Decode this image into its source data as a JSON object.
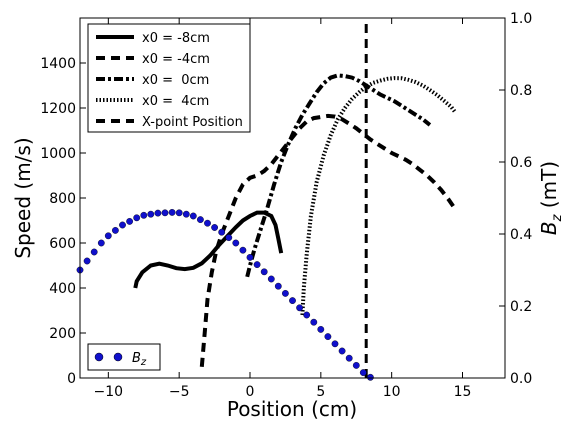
{
  "chart_data": {
    "type": "line",
    "title": "",
    "xlabel": "Position (cm)",
    "ylabel": "Speed (m/s)",
    "y2label_base": "B",
    "y2label_sub": "z",
    "y2label_unit": " (mT)",
    "xlim": [
      -12,
      18
    ],
    "ylim": [
      0,
      1600
    ],
    "y2lim": [
      0,
      1.0
    ],
    "x_ticks": [
      -10,
      -5,
      0,
      5,
      10,
      15
    ],
    "x_tick_labels": [
      "−10",
      "−5",
      "0",
      "5",
      "10",
      "15"
    ],
    "y_ticks": [
      0,
      200,
      400,
      600,
      800,
      1000,
      1200,
      1400
    ],
    "y_tick_labels": [
      "0",
      "200",
      "400",
      "600",
      "800",
      "1000",
      "1200",
      "1400"
    ],
    "y2_ticks": [
      0,
      0.2,
      0.4,
      0.6,
      0.8,
      1.0
    ],
    "y2_tick_labels": [
      "0.0",
      "0.2",
      "0.4",
      "0.6",
      "0.8",
      "1.0"
    ],
    "grid": false,
    "legend_position": "top-left",
    "series": [
      {
        "name": "x0 = -8cm",
        "style": "solid",
        "color": "#000000",
        "points": [
          [
            -8.1,
            400
          ],
          [
            -8.0,
            430
          ],
          [
            -7.6,
            470
          ],
          [
            -7.0,
            500
          ],
          [
            -6.4,
            508
          ],
          [
            -5.8,
            500
          ],
          [
            -5.2,
            488
          ],
          [
            -4.6,
            484
          ],
          [
            -4.0,
            490
          ],
          [
            -3.4,
            510
          ],
          [
            -2.8,
            545
          ],
          [
            -2.2,
            590
          ],
          [
            -1.6,
            630
          ],
          [
            -1.0,
            670
          ],
          [
            -0.5,
            700
          ],
          [
            0.0,
            720
          ],
          [
            0.5,
            735
          ],
          [
            1.0,
            735
          ],
          [
            1.5,
            720
          ],
          [
            1.8,
            680
          ],
          [
            2.0,
            620
          ],
          [
            2.2,
            555
          ]
        ]
      },
      {
        "name": "x0 = -4cm",
        "style": "dashed",
        "color": "#000000",
        "points": [
          [
            -3.4,
            50
          ],
          [
            -3.2,
            200
          ],
          [
            -3.0,
            350
          ],
          [
            -2.7,
            470
          ],
          [
            -2.4,
            560
          ],
          [
            -2.0,
            640
          ],
          [
            -1.5,
            720
          ],
          [
            -1.0,
            800
          ],
          [
            -0.5,
            860
          ],
          [
            0.0,
            890
          ],
          [
            0.5,
            900
          ],
          [
            1.0,
            920
          ],
          [
            1.5,
            950
          ],
          [
            2.0,
            990
          ],
          [
            2.5,
            1030
          ],
          [
            3.0,
            1070
          ],
          [
            3.5,
            1110
          ],
          [
            4.0,
            1140
          ],
          [
            4.5,
            1155
          ],
          [
            5.0,
            1160
          ],
          [
            5.5,
            1165
          ],
          [
            6.0,
            1162
          ],
          [
            6.5,
            1150
          ],
          [
            7.0,
            1130
          ],
          [
            7.5,
            1110
          ],
          [
            8.0,
            1085
          ],
          [
            8.5,
            1060
          ],
          [
            9.0,
            1040
          ],
          [
            9.5,
            1020
          ],
          [
            10.0,
            1000
          ],
          [
            10.5,
            985
          ],
          [
            11.0,
            970
          ],
          [
            11.5,
            950
          ],
          [
            12.0,
            925
          ],
          [
            12.5,
            900
          ],
          [
            13.0,
            870
          ],
          [
            13.5,
            835
          ],
          [
            14.0,
            795
          ],
          [
            14.5,
            750
          ]
        ]
      },
      {
        "name": "x0 =  0cm",
        "style": "dashdot",
        "color": "#000000",
        "points": [
          [
            -0.2,
            450
          ],
          [
            0.0,
            500
          ],
          [
            0.3,
            570
          ],
          [
            0.7,
            650
          ],
          [
            1.2,
            750
          ],
          [
            1.7,
            860
          ],
          [
            2.2,
            960
          ],
          [
            2.7,
            1040
          ],
          [
            3.2,
            1110
          ],
          [
            3.7,
            1170
          ],
          [
            4.2,
            1220
          ],
          [
            4.7,
            1270
          ],
          [
            5.2,
            1310
          ],
          [
            5.7,
            1335
          ],
          [
            6.2,
            1345
          ],
          [
            6.7,
            1342
          ],
          [
            7.2,
            1335
          ],
          [
            7.7,
            1320
          ],
          [
            8.2,
            1300
          ],
          [
            8.7,
            1280
          ],
          [
            9.2,
            1260
          ],
          [
            9.7,
            1245
          ],
          [
            10.2,
            1230
          ],
          [
            10.7,
            1210
          ],
          [
            11.2,
            1190
          ],
          [
            11.7,
            1170
          ],
          [
            12.2,
            1150
          ],
          [
            12.7,
            1125
          ]
        ]
      },
      {
        "name": "x0 =  4cm",
        "style": "dotted",
        "color": "#000000",
        "points": [
          [
            3.7,
            280
          ],
          [
            3.8,
            400
          ],
          [
            4.0,
            550
          ],
          [
            4.3,
            720
          ],
          [
            4.7,
            870
          ],
          [
            5.2,
            990
          ],
          [
            5.7,
            1080
          ],
          [
            6.2,
            1150
          ],
          [
            6.7,
            1200
          ],
          [
            7.2,
            1240
          ],
          [
            7.7,
            1270
          ],
          [
            8.2,
            1295
          ],
          [
            8.7,
            1312
          ],
          [
            9.2,
            1322
          ],
          [
            9.7,
            1330
          ],
          [
            10.2,
            1333
          ],
          [
            10.7,
            1332
          ],
          [
            11.2,
            1325
          ],
          [
            11.7,
            1315
          ],
          [
            12.2,
            1300
          ],
          [
            12.7,
            1280
          ],
          [
            13.2,
            1258
          ],
          [
            13.7,
            1232
          ],
          [
            14.2,
            1205
          ],
          [
            14.5,
            1180
          ]
        ]
      },
      {
        "name": "X-point Position",
        "style": "dashed",
        "color": "#000000",
        "points": [
          [
            8.2,
            0
          ],
          [
            8.2,
            1600
          ]
        ]
      }
    ],
    "bz_series": {
      "name": "Bz",
      "legend_base": "B",
      "legend_sub": "z",
      "axis": "right",
      "color": "#1010cc",
      "points": [
        [
          -12.0,
          0.3
        ],
        [
          -11.5,
          0.325
        ],
        [
          -11.0,
          0.35
        ],
        [
          -10.5,
          0.375
        ],
        [
          -10.0,
          0.395
        ],
        [
          -9.5,
          0.41
        ],
        [
          -9.0,
          0.425
        ],
        [
          -8.5,
          0.435
        ],
        [
          -8.0,
          0.445
        ],
        [
          -7.5,
          0.452
        ],
        [
          -7.0,
          0.455
        ],
        [
          -6.5,
          0.458
        ],
        [
          -6.0,
          0.459
        ],
        [
          -5.5,
          0.46
        ],
        [
          -5.0,
          0.459
        ],
        [
          -4.5,
          0.455
        ],
        [
          -4.0,
          0.45
        ],
        [
          -3.5,
          0.44
        ],
        [
          -3.0,
          0.43
        ],
        [
          -2.5,
          0.418
        ],
        [
          -2.0,
          0.405
        ],
        [
          -1.5,
          0.39
        ],
        [
          -1.0,
          0.375
        ],
        [
          -0.5,
          0.355
        ],
        [
          0.0,
          0.335
        ],
        [
          0.5,
          0.315
        ],
        [
          1.0,
          0.295
        ],
        [
          1.5,
          0.275
        ],
        [
          2.0,
          0.255
        ],
        [
          2.5,
          0.235
        ],
        [
          3.0,
          0.215
        ],
        [
          3.5,
          0.195
        ],
        [
          4.0,
          0.175
        ],
        [
          4.5,
          0.155
        ],
        [
          5.0,
          0.135
        ],
        [
          5.5,
          0.115
        ],
        [
          6.0,
          0.095
        ],
        [
          6.5,
          0.075
        ],
        [
          7.0,
          0.055
        ],
        [
          7.5,
          0.035
        ],
        [
          8.0,
          0.015
        ],
        [
          8.5,
          0.002
        ]
      ]
    }
  }
}
